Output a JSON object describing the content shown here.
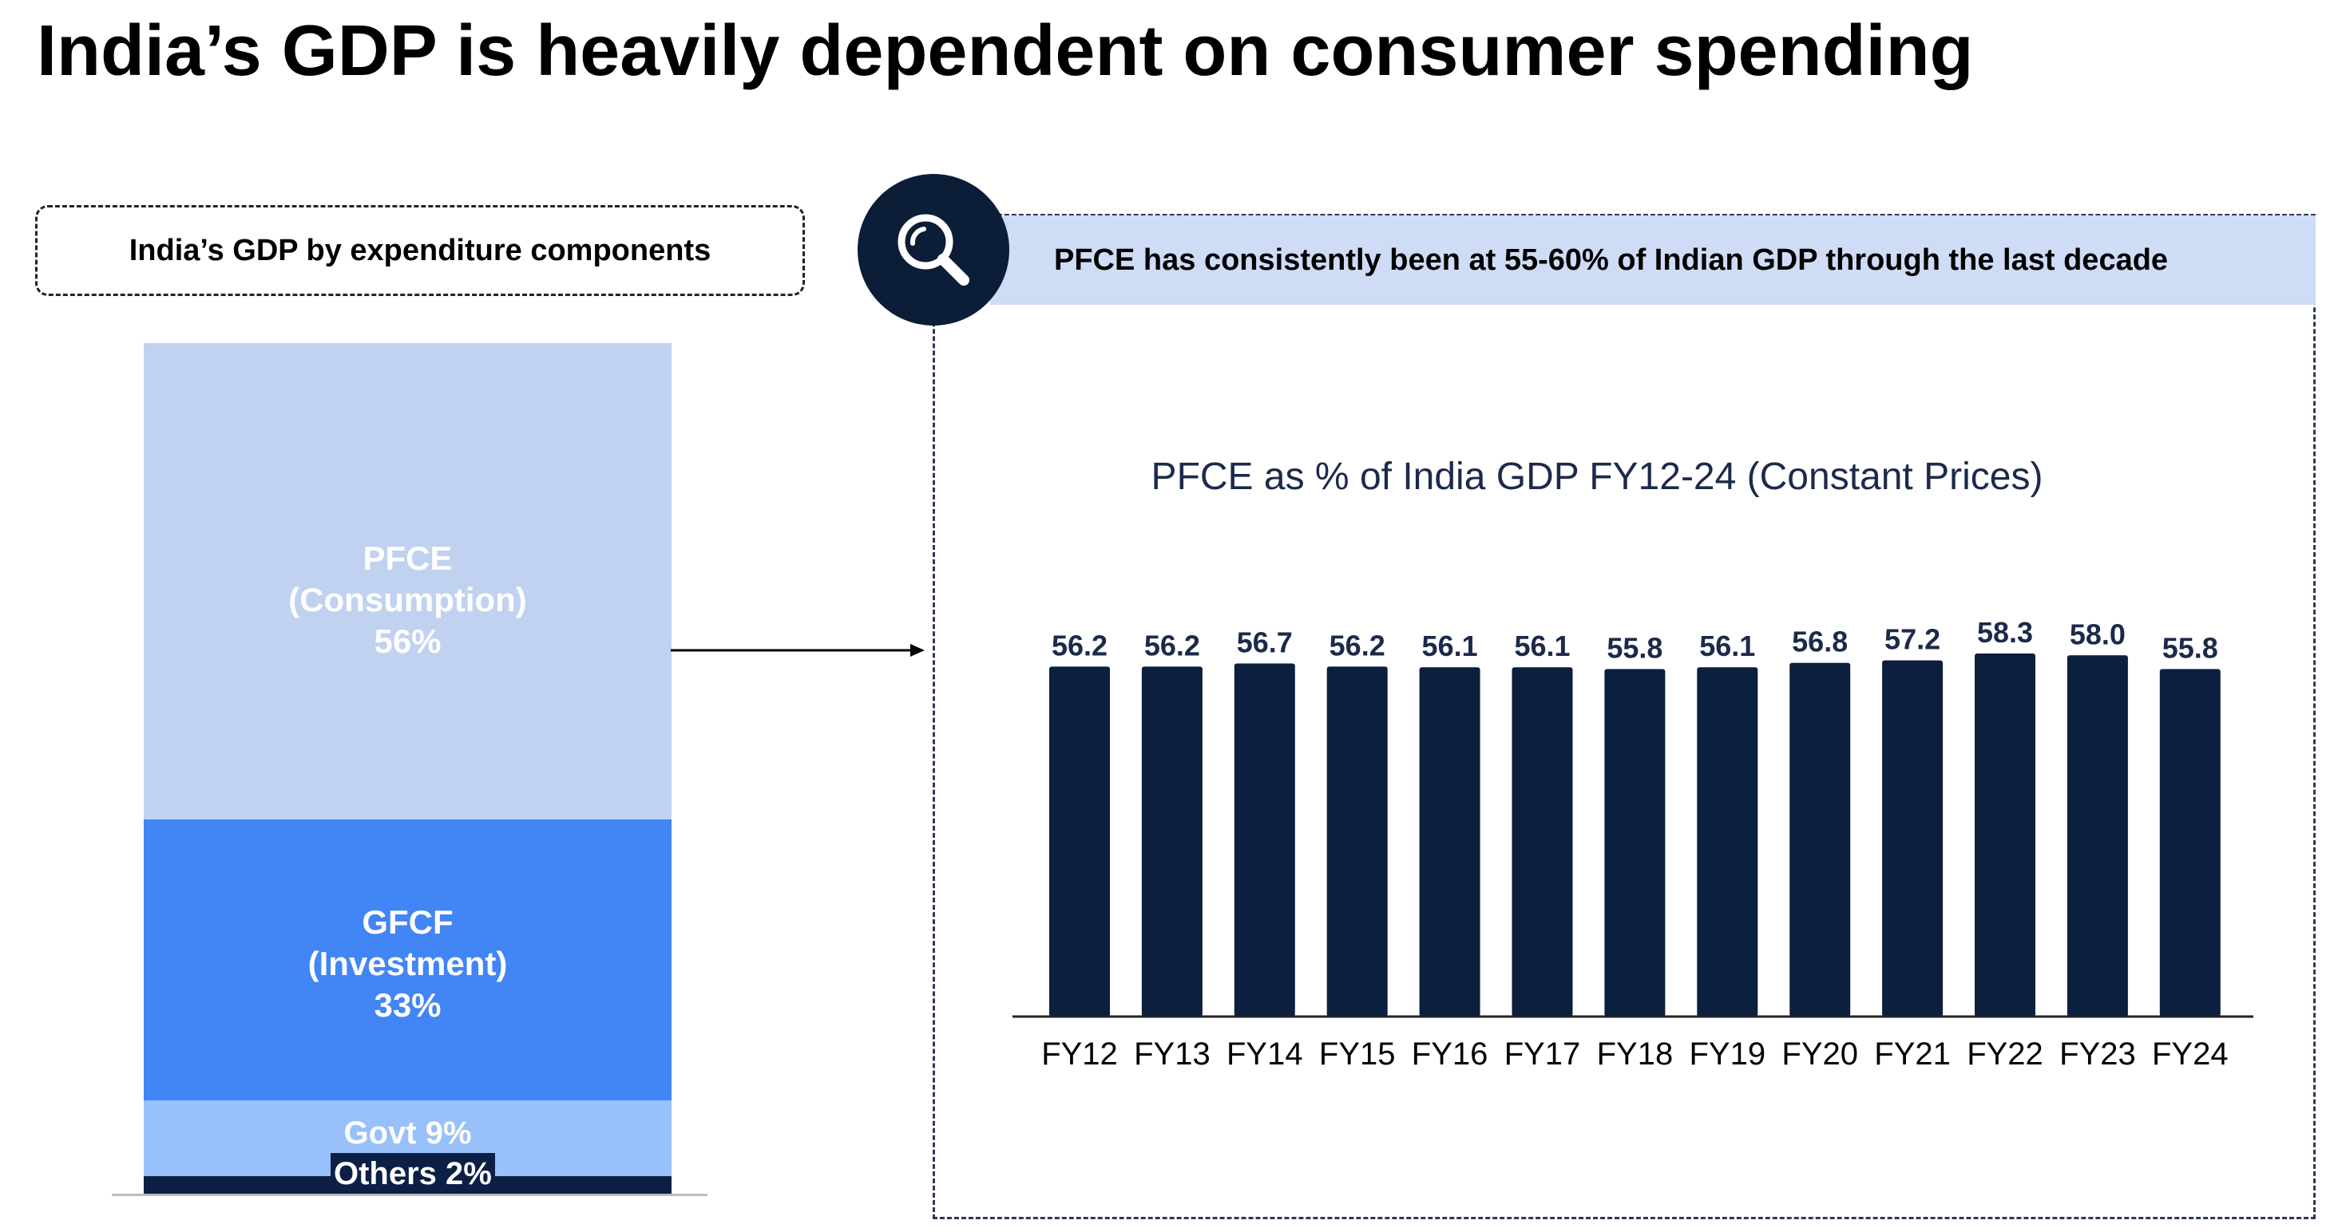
{
  "page": {
    "title": "India’s GDP is heavily dependent on consumer spending"
  },
  "left_panel": {
    "header": "India’s GDP by expenditure components",
    "segments": [
      {
        "name": "PFCE",
        "line1": "PFCE",
        "line2": "(Consumption)",
        "line3": "56%",
        "value": 56,
        "color": "#c0d2ef"
      },
      {
        "name": "GFCF",
        "line1": "GFCF",
        "line2": "(Investment)",
        "line3": "33%",
        "value": 33,
        "color": "#4285f4"
      },
      {
        "name": "Govt",
        "line1": "Govt 9%",
        "value": 9,
        "color": "#98c0fa"
      },
      {
        "name": "Others",
        "line1": "Others 2%",
        "value": 2,
        "color": "#0c2045"
      }
    ]
  },
  "right_panel": {
    "banner": "PFCE has consistently been at 55-60% of Indian GDP through the last decade",
    "icon": "search-icon"
  },
  "chart_data": {
    "type": "bar",
    "title": "PFCE as % of India GDP FY12-24 (Constant Prices)",
    "categories": [
      "FY12",
      "FY13",
      "FY14",
      "FY15",
      "FY16",
      "FY17",
      "FY18",
      "FY19",
      "FY20",
      "FY21",
      "FY22",
      "FY23",
      "FY24"
    ],
    "values": [
      56.2,
      56.2,
      56.7,
      56.2,
      56.1,
      56.1,
      55.8,
      56.1,
      56.8,
      57.2,
      58.3,
      58.0,
      55.8
    ],
    "value_labels": [
      "56.2",
      "56.2",
      "56.7",
      "56.2",
      "56.1",
      "56.1",
      "55.8",
      "56.1",
      "56.8",
      "57.2",
      "58.3",
      "58.0",
      "55.8"
    ],
    "xlabel": "",
    "ylabel": "",
    "ylim": [
      0,
      58.3
    ],
    "grid": false,
    "bar_color": "#0c1f3f"
  }
}
